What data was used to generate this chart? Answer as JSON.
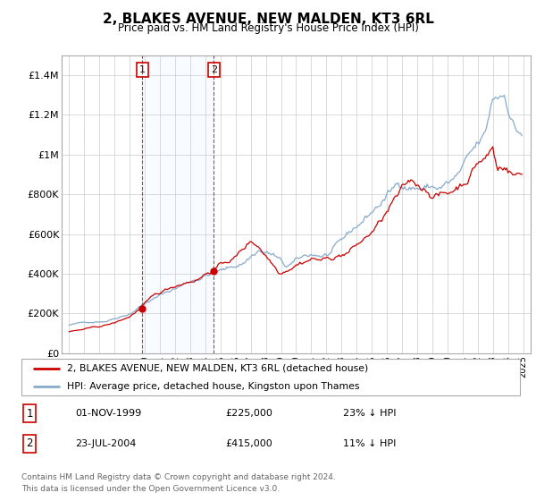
{
  "title": "2, BLAKES AVENUE, NEW MALDEN, KT3 6RL",
  "subtitle": "Price paid vs. HM Land Registry's House Price Index (HPI)",
  "sale1_date": "01-NOV-1999",
  "sale1_price": 225000,
  "sale1_label": "1",
  "sale1_year": 1999.83,
  "sale2_date": "23-JUL-2004",
  "sale2_price": 415000,
  "sale2_label": "2",
  "sale2_year": 2004.55,
  "line_color_red": "#CC0000",
  "line_color_blue": "#88AACC",
  "legend_line1": "2, BLAKES AVENUE, NEW MALDEN, KT3 6RL (detached house)",
  "legend_line2": "HPI: Average price, detached house, Kingston upon Thames",
  "footer1": "Contains HM Land Registry data © Crown copyright and database right 2024.",
  "footer2": "This data is licensed under the Open Government Licence v3.0.",
  "sale1_pct": "23% ↓ HPI",
  "sale2_pct": "11% ↓ HPI",
  "ylim": [
    0,
    1500000
  ],
  "yticks": [
    0,
    200000,
    400000,
    600000,
    800000,
    1000000,
    1200000,
    1400000
  ],
  "xmin": 1995.0,
  "xmax": 2025.5,
  "grid_color": "#CCCCCC",
  "shade_color": "#DDEEFF"
}
